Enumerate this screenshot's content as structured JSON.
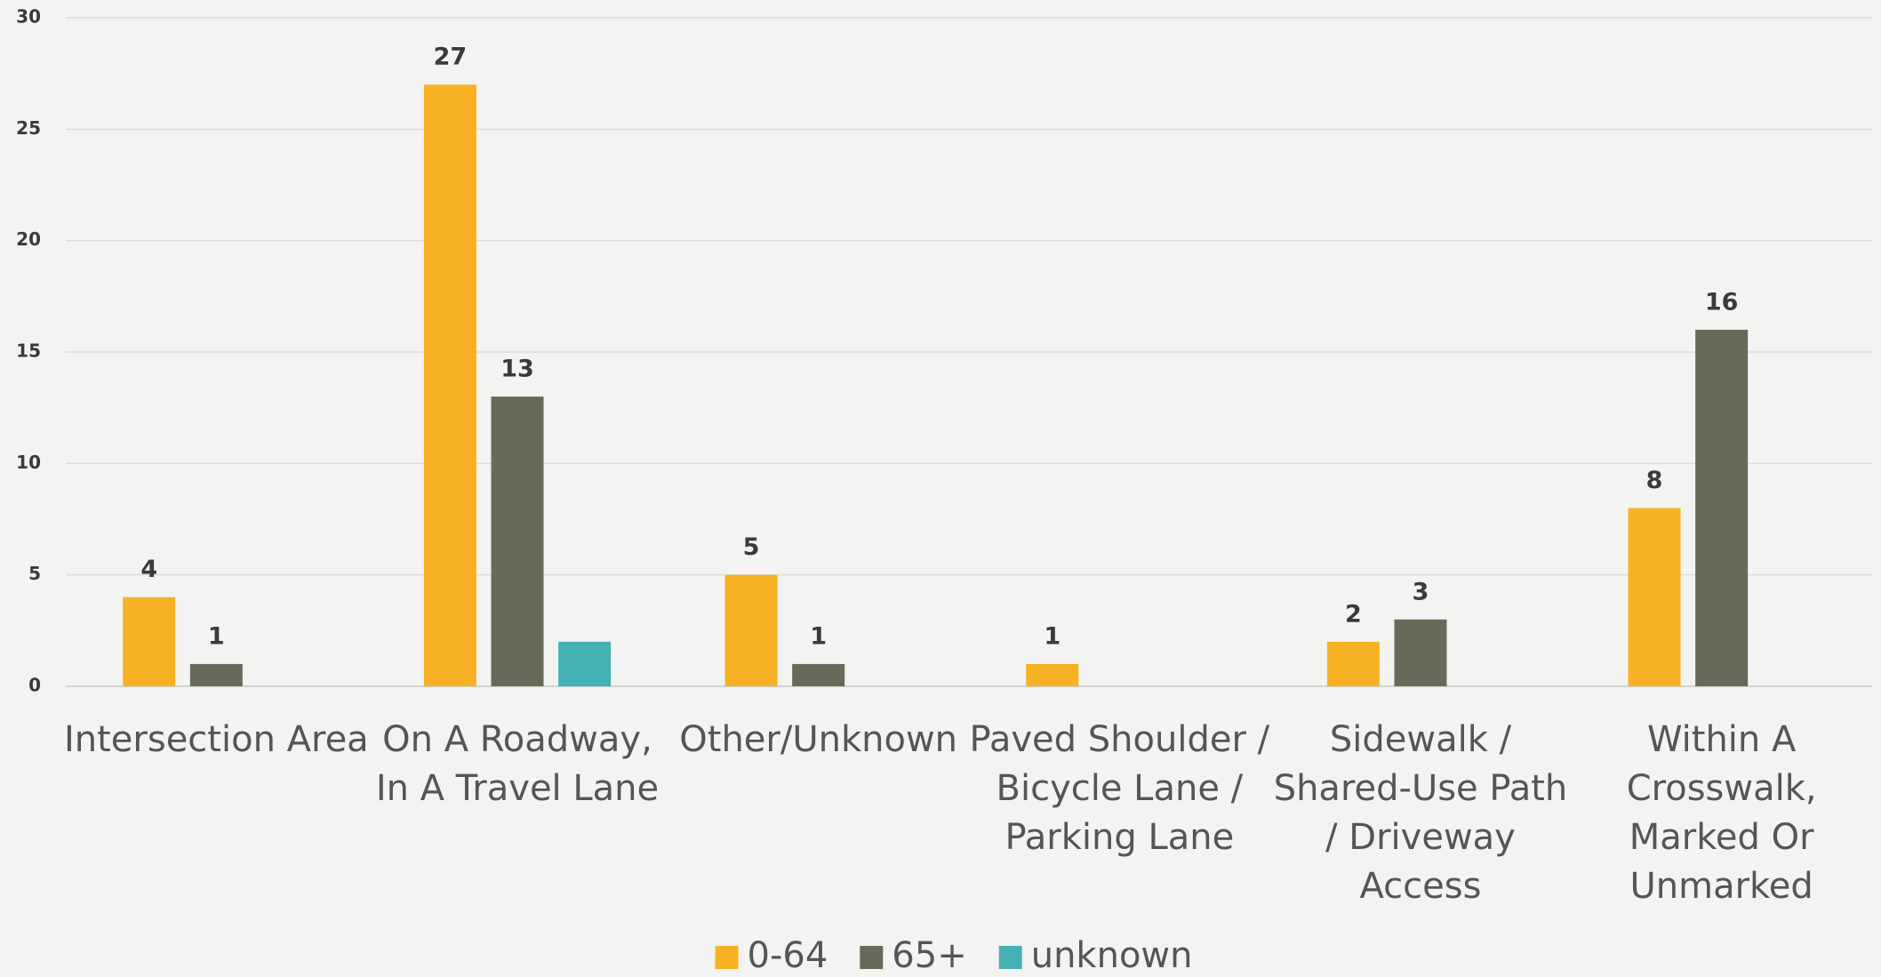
{
  "chart_data": {
    "type": "bar",
    "categories": [
      "Intersection Area",
      "On A Roadway, In A Travel Lane",
      "Other/Unknown",
      "Paved Shoulder / Bicycle Lane / Parking Lane",
      "Sidewalk / Shared-Use Path / Driveway Access",
      "Within A Crosswalk, Marked Or Unmarked"
    ],
    "series": [
      {
        "name": "0-64",
        "color": "#f6b224",
        "values": [
          4,
          27,
          5,
          1,
          2,
          8
        ],
        "data_labels": true
      },
      {
        "name": "65+",
        "color": "#666b57",
        "values": [
          1,
          13,
          1,
          null,
          3,
          16
        ],
        "data_labels": true
      },
      {
        "name": "unknown",
        "color": "#45b1b5",
        "values": [
          null,
          2,
          null,
          null,
          null,
          null
        ],
        "data_labels": false
      }
    ],
    "ylim": [
      0,
      30
    ],
    "yticks": [
      0,
      5,
      10,
      15,
      20,
      25,
      30
    ],
    "grid": true,
    "legend": "bottom"
  }
}
